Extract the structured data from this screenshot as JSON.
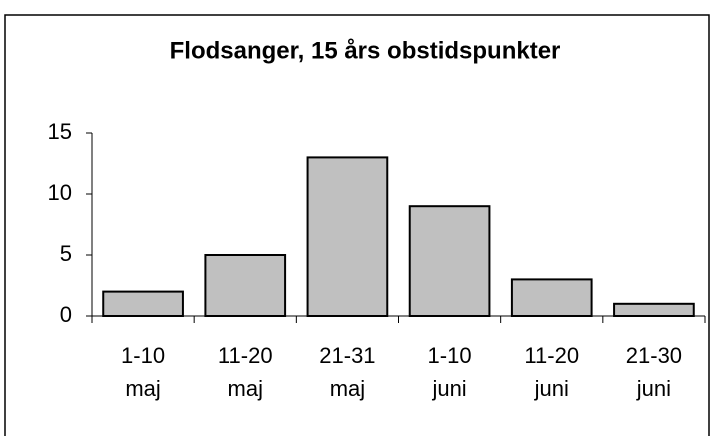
{
  "chart_data": {
    "type": "bar",
    "title": "Flodsanger, 15 års obstidspunkter",
    "categories": [
      [
        "1-10",
        "maj"
      ],
      [
        "11-20",
        "maj"
      ],
      [
        "21-31",
        "maj"
      ],
      [
        "1-10",
        "juni"
      ],
      [
        "11-20",
        "juni"
      ],
      [
        "21-30",
        "juni"
      ]
    ],
    "values": [
      2,
      5,
      13,
      9,
      3,
      1
    ],
    "color": "#c0c0c0",
    "ylim": [
      0,
      15
    ],
    "yticks": [
      0,
      5,
      10,
      15
    ],
    "grid": false
  }
}
